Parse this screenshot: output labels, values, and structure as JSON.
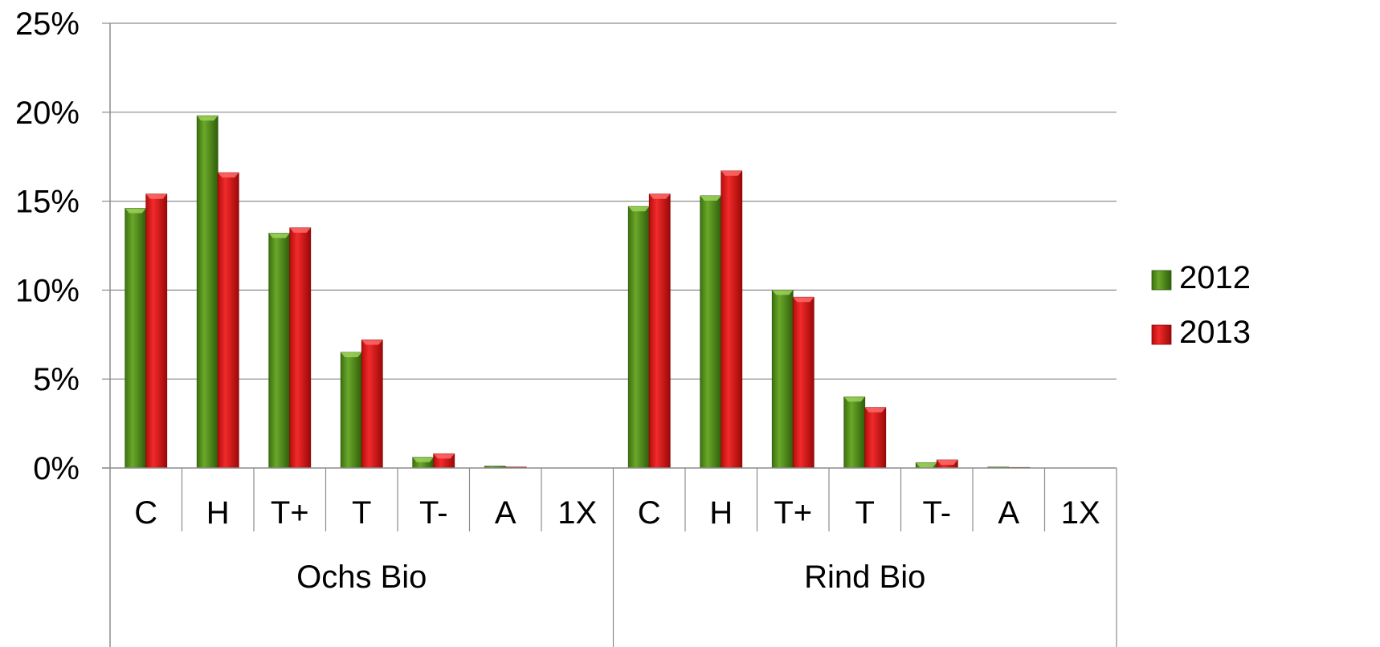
{
  "chart_data": {
    "type": "bar",
    "title": "",
    "xlabel": "",
    "ylabel": "",
    "ylim": [
      0,
      25
    ],
    "y_ticks": [
      0,
      5,
      10,
      15,
      20,
      25
    ],
    "y_tick_labels": [
      "0%",
      "5%",
      "10%",
      "15%",
      "20%",
      "25%"
    ],
    "grid": true,
    "legend_position": "right",
    "groups": [
      {
        "label": "Ochs Bio",
        "categories": [
          "C",
          "H",
          "T+",
          "T",
          "T-",
          "A",
          "1X"
        ]
      },
      {
        "label": "Rind Bio",
        "categories": [
          "C",
          "H",
          "T+",
          "T",
          "T-",
          "A",
          "1X"
        ]
      }
    ],
    "series": [
      {
        "name": "2012",
        "color": "#4e8b14",
        "values": [
          14.6,
          19.8,
          13.2,
          6.5,
          0.6,
          0.1,
          0,
          14.7,
          15.3,
          10.0,
          4.0,
          0.3,
          0.05,
          0
        ]
      },
      {
        "name": "2013",
        "color": "#dd1111",
        "values": [
          15.4,
          16.6,
          13.5,
          7.2,
          0.8,
          0.05,
          0,
          15.4,
          16.7,
          9.6,
          3.4,
          0.45,
          0.03,
          0
        ]
      }
    ]
  }
}
